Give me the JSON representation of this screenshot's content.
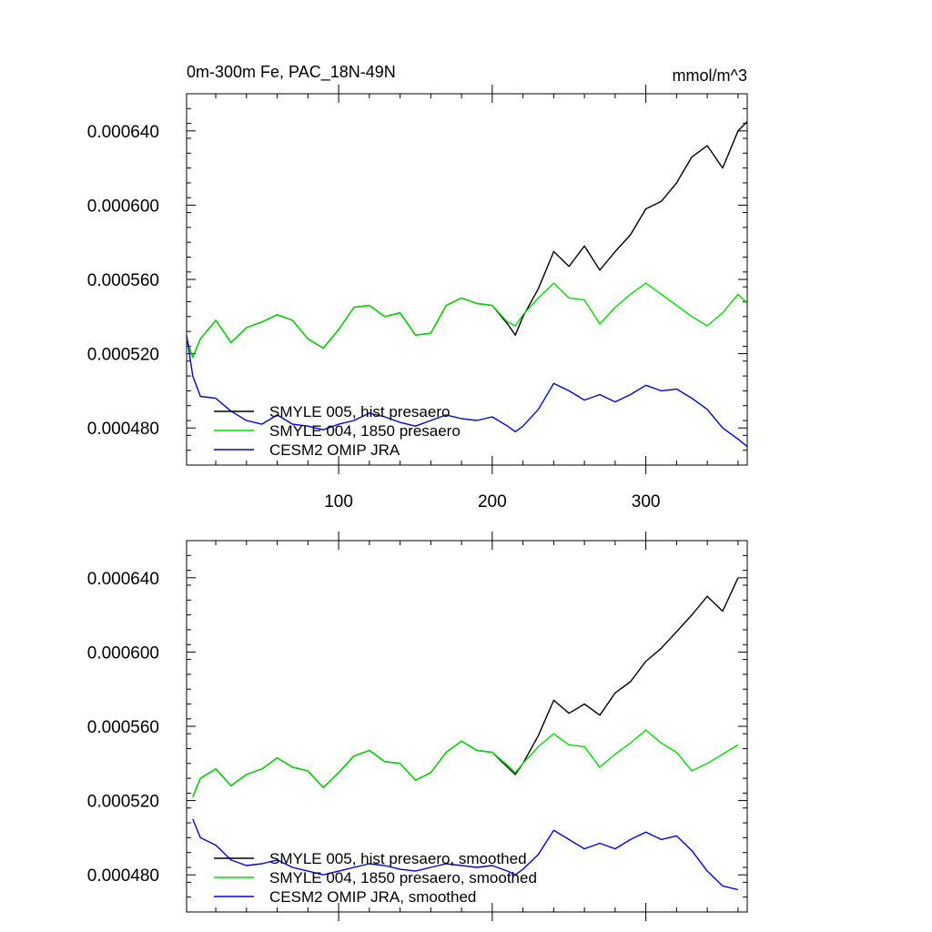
{
  "chart_data": [
    {
      "type": "line",
      "title": "0m-300m Fe, PAC_18N-49N",
      "units": "mmol/m^3",
      "xlabel": "",
      "ylabel": "",
      "xlim": [
        1,
        366
      ],
      "ylim": [
        0.00046,
        0.00066
      ],
      "x_ticks": [
        100,
        200,
        300
      ],
      "x_tick_labels": [
        "100",
        "200",
        "300"
      ],
      "y_ticks": [
        0.00048,
        0.00052,
        0.00056,
        0.0006,
        0.00064
      ],
      "y_tick_labels": [
        "0.000480",
        "0.000520",
        "0.000560",
        "0.000600",
        "0.000640"
      ],
      "legend_position": "bottom-left",
      "x": [
        1,
        5,
        10,
        20,
        30,
        40,
        50,
        60,
        70,
        80,
        90,
        100,
        110,
        120,
        130,
        140,
        150,
        160,
        170,
        180,
        190,
        200,
        210,
        215,
        220,
        230,
        240,
        250,
        260,
        270,
        280,
        290,
        300,
        310,
        320,
        330,
        340,
        350,
        360,
        366
      ],
      "series": [
        {
          "name": "SMYLE 005, hist presaero",
          "color": "#000000",
          "values": [
            0.000528,
            0.000518,
            0.000528,
            0.000538,
            0.000526,
            0.000534,
            0.000537,
            0.000541,
            0.000538,
            0.000528,
            0.000523,
            0.000533,
            0.000545,
            0.000546,
            0.00054,
            0.000542,
            0.00053,
            0.000531,
            0.000546,
            0.00055,
            0.000547,
            0.000546,
            0.000536,
            0.00053,
            0.00054,
            0.000555,
            0.000575,
            0.000567,
            0.000578,
            0.000565,
            0.000575,
            0.000584,
            0.000598,
            0.000602,
            0.000612,
            0.000626,
            0.000632,
            0.00062,
            0.00064,
            0.000645
          ]
        },
        {
          "name": "SMYLE 004, 1850 presaero",
          "color": "#00dd00",
          "values": [
            0.000528,
            0.000518,
            0.000528,
            0.000538,
            0.000526,
            0.000534,
            0.000537,
            0.000541,
            0.000538,
            0.000528,
            0.000523,
            0.000533,
            0.000545,
            0.000546,
            0.00054,
            0.000542,
            0.00053,
            0.000531,
            0.000546,
            0.00055,
            0.000547,
            0.000546,
            0.000537,
            0.000535,
            0.000541,
            0.00055,
            0.000558,
            0.00055,
            0.000549,
            0.000536,
            0.000545,
            0.000552,
            0.000558,
            0.000552,
            0.000546,
            0.00054,
            0.000535,
            0.000542,
            0.000552,
            0.000547
          ]
        },
        {
          "name": "CESM2 OMIP JRA",
          "color": "#0000dd",
          "values": [
            0.00053,
            0.000508,
            0.000497,
            0.000496,
            0.000489,
            0.000484,
            0.000482,
            0.000487,
            0.000482,
            0.000481,
            0.000479,
            0.000482,
            0.000484,
            0.000488,
            0.000486,
            0.000483,
            0.000481,
            0.000484,
            0.000487,
            0.000485,
            0.000484,
            0.000486,
            0.000481,
            0.000478,
            0.000481,
            0.00049,
            0.000504,
            0.0005,
            0.000495,
            0.000498,
            0.000494,
            0.000498,
            0.000503,
            0.0005,
            0.000501,
            0.000496,
            0.00049,
            0.00048,
            0.000474,
            0.00047
          ]
        }
      ]
    },
    {
      "type": "line",
      "title": "",
      "xlabel": "",
      "ylabel": "",
      "xlim": [
        1,
        366
      ],
      "ylim": [
        0.00046,
        0.00066
      ],
      "x_ticks": [
        100,
        200,
        300
      ],
      "y_ticks": [
        0.00048,
        0.00052,
        0.00056,
        0.0006,
        0.00064
      ],
      "y_tick_labels": [
        "0.000480",
        "0.000520",
        "0.000560",
        "0.000600",
        "0.000640"
      ],
      "legend_position": "bottom-left",
      "x": [
        5,
        10,
        20,
        30,
        40,
        50,
        60,
        70,
        80,
        90,
        100,
        110,
        120,
        130,
        140,
        150,
        160,
        170,
        180,
        190,
        200,
        210,
        215,
        220,
        230,
        240,
        250,
        260,
        270,
        280,
        290,
        300,
        310,
        320,
        330,
        340,
        350,
        360
      ],
      "series": [
        {
          "name": "SMYLE 005, hist presaero, smoothed",
          "color": "#000000",
          "values": [
            0.000522,
            0.000532,
            0.000537,
            0.000528,
            0.000534,
            0.000537,
            0.000543,
            0.000538,
            0.000536,
            0.000527,
            0.000535,
            0.000544,
            0.000547,
            0.000541,
            0.00054,
            0.000531,
            0.000535,
            0.000546,
            0.000552,
            0.000547,
            0.000546,
            0.000538,
            0.000534,
            0.00054,
            0.000555,
            0.000574,
            0.000567,
            0.000572,
            0.000566,
            0.000578,
            0.000584,
            0.000595,
            0.000602,
            0.000611,
            0.00062,
            0.00063,
            0.000622,
            0.00064
          ]
        },
        {
          "name": "SMYLE 004, 1850 presaero, smoothed",
          "color": "#00dd00",
          "values": [
            0.000522,
            0.000532,
            0.000537,
            0.000528,
            0.000534,
            0.000537,
            0.000543,
            0.000538,
            0.000536,
            0.000527,
            0.000535,
            0.000544,
            0.000547,
            0.000541,
            0.00054,
            0.000531,
            0.000535,
            0.000546,
            0.000552,
            0.000547,
            0.000546,
            0.000539,
            0.000535,
            0.00054,
            0.000549,
            0.000556,
            0.00055,
            0.000549,
            0.000538,
            0.000545,
            0.000551,
            0.000558,
            0.000551,
            0.000546,
            0.000536,
            0.00054,
            0.000545,
            0.00055
          ]
        },
        {
          "name": "CESM2 OMIP JRA, smoothed",
          "color": "#0000dd",
          "values": [
            0.00051,
            0.0005,
            0.000496,
            0.000488,
            0.000485,
            0.000486,
            0.000488,
            0.000484,
            0.000482,
            0.00048,
            0.000482,
            0.000484,
            0.000486,
            0.000485,
            0.000483,
            0.000482,
            0.000484,
            0.000486,
            0.000485,
            0.000484,
            0.000485,
            0.000482,
            0.00048,
            0.000483,
            0.000491,
            0.000504,
            0.000499,
            0.000494,
            0.000497,
            0.000494,
            0.000499,
            0.000503,
            0.000499,
            0.000501,
            0.000493,
            0.000482,
            0.000474,
            0.000472
          ]
        }
      ]
    }
  ]
}
